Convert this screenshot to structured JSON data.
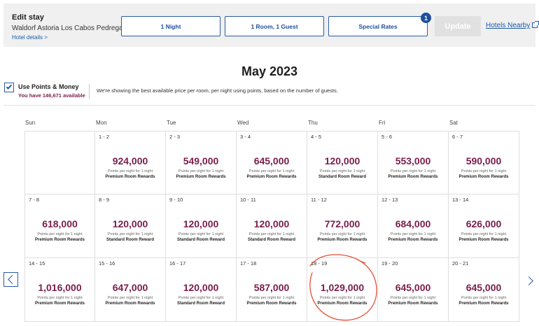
{
  "stay": {
    "title": "Edit stay",
    "hotel": "Waldorf Astoria Los Cabos Pedregal",
    "details_link": "Hotel details >"
  },
  "controls": {
    "nights": "1 Night",
    "room_guests": "1 Room, 1 Guest",
    "special_rates": "Special Rates",
    "special_rates_badge": "1",
    "update": "Update",
    "hotels_nearby": "Hotels Nearby"
  },
  "calendar": {
    "month_title": "May 2023",
    "use_points_label": "Use Points & Money",
    "points_available": "You have 146,671 available",
    "note": "We're showing the best available price per room, per night using points, based on the number of guests.",
    "weekdays": [
      "Sun",
      "Mon",
      "Tue",
      "Wed",
      "Thu",
      "Fri",
      "Sat"
    ],
    "sub_label": "Points per night for 1 night",
    "weeks": [
      [
        null,
        {
          "dates": "1 - 2",
          "points": "924,000",
          "type": "Premium Room Rewards"
        },
        {
          "dates": "2 - 3",
          "points": "549,000",
          "type": "Premium Room Rewards"
        },
        {
          "dates": "3 - 4",
          "points": "645,000",
          "type": "Premium Room Rewards"
        },
        {
          "dates": "4 - 5",
          "points": "120,000",
          "type": "Standard Room Reward"
        },
        {
          "dates": "5 - 6",
          "points": "553,000",
          "type": "Premium Room Rewards"
        },
        {
          "dates": "6 - 7",
          "points": "590,000",
          "type": "Premium Room Rewards"
        }
      ],
      [
        {
          "dates": "7 - 8",
          "points": "618,000",
          "type": "Premium Room Rewards"
        },
        {
          "dates": "8 - 9",
          "points": "120,000",
          "type": "Standard Room Reward"
        },
        {
          "dates": "9 - 10",
          "points": "120,000",
          "type": "Standard Room Reward"
        },
        {
          "dates": "10 - 11",
          "points": "120,000",
          "type": "Standard Room Reward"
        },
        {
          "dates": "11 - 12",
          "points": "772,000",
          "type": "Premium Room Rewards"
        },
        {
          "dates": "12 - 13",
          "points": "684,000",
          "type": "Premium Room Rewards"
        },
        {
          "dates": "13 - 14",
          "points": "626,000",
          "type": "Premium Room Rewards"
        }
      ],
      [
        {
          "dates": "14 - 15",
          "points": "1,016,000",
          "type": "Premium Room Rewards"
        },
        {
          "dates": "15 - 16",
          "points": "647,000",
          "type": "Premium Room Rewards"
        },
        {
          "dates": "16 - 17",
          "points": "120,000",
          "type": "Standard Room Reward"
        },
        {
          "dates": "17 - 18",
          "points": "587,000",
          "type": "Premium Room Rewards"
        },
        {
          "dates": "18 - 19",
          "points": "1,029,000",
          "type": "Premium Room Rewards"
        },
        {
          "dates": "19 - 20",
          "points": "645,000",
          "type": "Premium Room Rewards"
        },
        {
          "dates": "20 - 21",
          "points": "645,000",
          "type": "Premium Room Rewards"
        }
      ]
    ]
  },
  "colors": {
    "accent_blue": "#1e4e9c",
    "points_purple": "#7a1d4a",
    "annotation_red": "#e0523a"
  },
  "icons": {
    "prev": "chevron-left-icon",
    "next": "chevron-right-icon",
    "external": "external-link-icon",
    "check": "check-icon"
  }
}
